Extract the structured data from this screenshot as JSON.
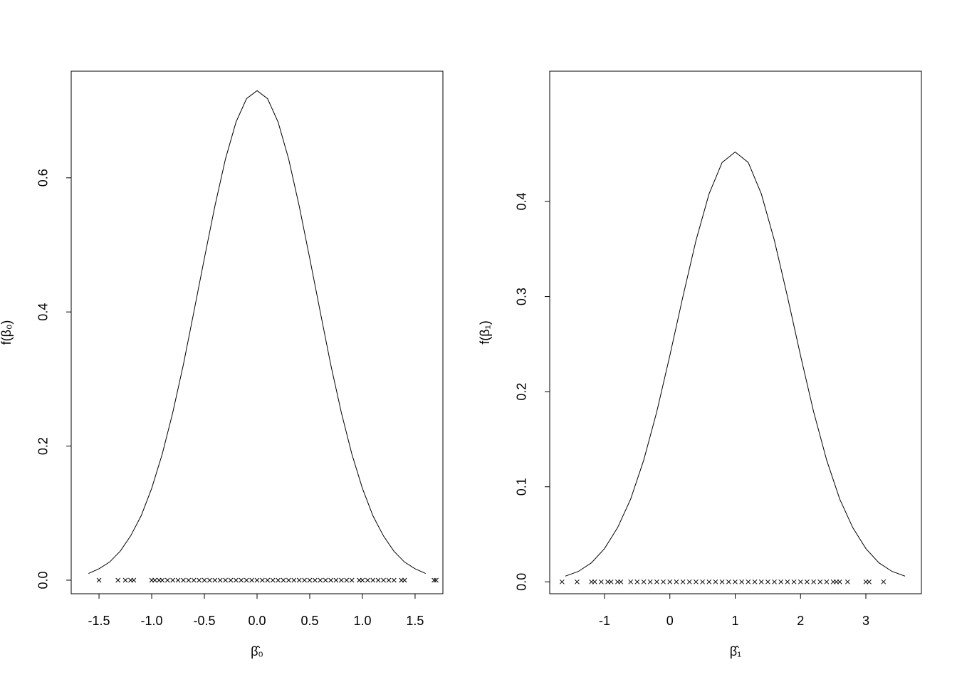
{
  "chart_data": [
    {
      "type": "line",
      "xlabel": "β̂₀",
      "ylabel": "f(β₀)",
      "color": "#000000",
      "x": [
        -1.6,
        -1.5,
        -1.4,
        -1.3,
        -1.2,
        -1.1,
        -1.0,
        -0.9,
        -0.8,
        -0.7,
        -0.6,
        -0.5,
        -0.4,
        -0.3,
        -0.2,
        -0.1,
        0,
        0.1,
        0.2,
        0.3,
        0.4,
        0.5,
        0.6,
        0.7,
        0.8,
        0.9,
        1.0,
        1.1,
        1.2,
        1.3,
        1.4,
        1.5,
        1.6
      ],
      "values": [
        0.01,
        0.017,
        0.027,
        0.043,
        0.066,
        0.096,
        0.137,
        0.188,
        0.25,
        0.321,
        0.4,
        0.48,
        0.558,
        0.628,
        0.683,
        0.718,
        0.73,
        0.718,
        0.683,
        0.628,
        0.558,
        0.48,
        0.4,
        0.321,
        0.25,
        0.188,
        0.137,
        0.096,
        0.066,
        0.043,
        0.027,
        0.017,
        0.01
      ],
      "points_x": [
        -1.5,
        -1.32,
        -1.25,
        -1.2,
        -1.17,
        -1.0,
        -0.97,
        -0.93,
        -0.9,
        -0.85,
        -0.8,
        -0.75,
        -0.7,
        -0.65,
        -0.6,
        -0.55,
        -0.5,
        -0.45,
        -0.4,
        -0.35,
        -0.3,
        -0.25,
        -0.2,
        -0.15,
        -0.1,
        -0.05,
        0,
        0.05,
        0.1,
        0.15,
        0.2,
        0.25,
        0.3,
        0.35,
        0.4,
        0.45,
        0.5,
        0.55,
        0.6,
        0.65,
        0.7,
        0.75,
        0.8,
        0.85,
        0.9,
        0.97,
        1.0,
        1.05,
        1.1,
        1.15,
        1.2,
        1.25,
        1.3,
        1.37,
        1.4,
        1.68,
        1.7
      ],
      "xlim": [
        -1.764,
        1.764
      ],
      "ylim": [
        -0.0202,
        0.759
      ],
      "xticks": [
        -1.5,
        {
          "value": -1.0,
          "label": "-1.0"
        },
        -0.5,
        {
          "value": 0,
          "label": "0.0"
        },
        0.5,
        {
          "value": 1.0,
          "label": "1.0"
        },
        1.5
      ],
      "yticks": [
        {
          "value": 0,
          "label": "0.0"
        },
        0.2,
        0.4,
        0.6
      ]
    },
    {
      "type": "line",
      "xlabel": "β̂₁",
      "ylabel": "f(β₁)",
      "color": "#000000",
      "x": [
        -1.6,
        -1.4,
        -1.2,
        -1.0,
        -0.8,
        -0.6,
        -0.4,
        -0.2,
        0,
        0.2,
        0.4,
        0.6,
        0.8,
        1.0,
        1.2,
        1.4,
        1.6,
        1.8,
        2.0,
        2.2,
        2.4,
        2.6,
        2.8,
        3.0,
        3.2,
        3.4,
        3.6
      ],
      "values": [
        0.006,
        0.011,
        0.02,
        0.035,
        0.057,
        0.087,
        0.128,
        0.179,
        0.238,
        0.3,
        0.359,
        0.408,
        0.441,
        0.452,
        0.441,
        0.408,
        0.359,
        0.3,
        0.238,
        0.179,
        0.128,
        0.087,
        0.057,
        0.035,
        0.02,
        0.011,
        0.006
      ],
      "points_x": [
        -1.65,
        -1.42,
        -1.2,
        -1.15,
        -1.05,
        -0.95,
        -0.9,
        -0.8,
        -0.75,
        -0.6,
        -0.5,
        -0.4,
        -0.3,
        -0.2,
        -0.1,
        0,
        0.1,
        0.2,
        0.3,
        0.4,
        0.5,
        0.6,
        0.7,
        0.8,
        0.9,
        1.0,
        1.1,
        1.2,
        1.3,
        1.4,
        1.5,
        1.6,
        1.7,
        1.8,
        1.9,
        2.0,
        2.1,
        2.2,
        2.3,
        2.4,
        2.5,
        2.55,
        2.6,
        2.72,
        3.0,
        3.05,
        3.27
      ],
      "xlim": [
        -1.839,
        3.85
      ],
      "ylim": [
        -0.0125,
        0.537
      ],
      "xticks": [
        -1,
        0,
        1,
        2,
        3
      ],
      "yticks": [
        {
          "value": 0,
          "label": "0.0"
        },
        0.1,
        0.2,
        0.3,
        0.4
      ]
    }
  ]
}
